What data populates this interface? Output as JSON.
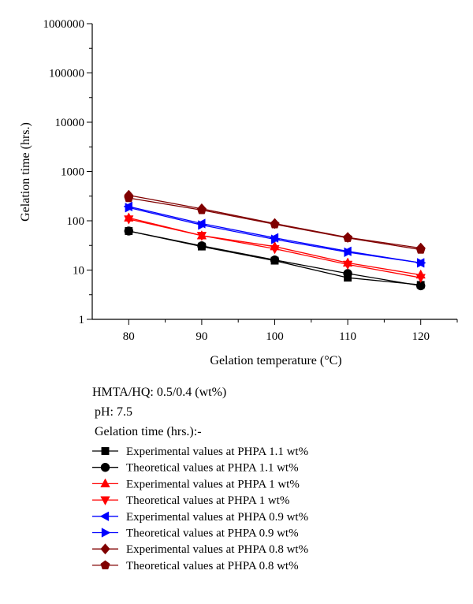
{
  "chart_data": {
    "type": "line",
    "xlabel": "Gelation temperature (°C)",
    "ylabel": "Gelation time (hrs.)",
    "x": [
      80,
      90,
      100,
      110,
      120
    ],
    "xlim": [
      75,
      125
    ],
    "x_ticks": [
      80,
      90,
      100,
      110,
      120
    ],
    "ylim": [
      1,
      1000000
    ],
    "y_scale": "log",
    "y_ticks": [
      1,
      10,
      100,
      1000,
      10000,
      100000,
      1000000
    ],
    "y_tick_labels": [
      "1",
      "10",
      "100",
      "1000",
      "10000",
      "100000",
      "1000000"
    ],
    "grid": false,
    "legend_position": "bottom",
    "annotations": [
      "HMTA/HQ: 0.5/0.4 (wt%)",
      "pH: 7.5",
      "Gelation time (hrs.):-"
    ],
    "series": [
      {
        "name": "Experimental values at PHPA 1.1 wt%",
        "color": "#000000",
        "marker": "square",
        "values": [
          62,
          30,
          15.5,
          7,
          5
        ]
      },
      {
        "name": "Theoretical values at PHPA 1.1 wt%",
        "color": "#000000",
        "marker": "circle",
        "values": [
          62,
          31,
          16,
          8.5,
          4.8
        ]
      },
      {
        "name": "Experimental values at PHPA 1 wt%",
        "color": "#ff0000",
        "marker": "triangle-up",
        "values": [
          115,
          50,
          30,
          14,
          8
        ]
      },
      {
        "name": "Theoretical values at PHPA 1 wt%",
        "color": "#ff0000",
        "marker": "triangle-down",
        "values": [
          108,
          50,
          27,
          13,
          7
        ]
      },
      {
        "name": "Experimental values at PHPA 0.9 wt%",
        "color": "#0000ff",
        "marker": "triangle-left",
        "values": [
          195,
          88,
          45,
          24,
          14
        ]
      },
      {
        "name": "Theoretical values at PHPA 0.9 wt%",
        "color": "#0000ff",
        "marker": "triangle-right",
        "values": [
          185,
          82,
          42,
          23,
          14
        ]
      },
      {
        "name": "Experimental values at PHPA 0.8 wt%",
        "color": "#800000",
        "marker": "diamond",
        "values": [
          330,
          175,
          88,
          46,
          28
        ]
      },
      {
        "name": "Theoretical values at PHPA 0.8 wt%",
        "color": "#800000",
        "marker": "pentagon",
        "values": [
          290,
          165,
          85,
          45,
          26
        ]
      }
    ]
  }
}
